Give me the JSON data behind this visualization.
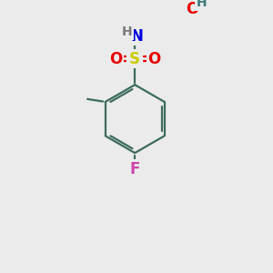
{
  "background_color": "#ebebeb",
  "bond_color": "#3d6b5e",
  "bond_width": 1.6,
  "atom_colors": {
    "O": "#e60000",
    "N": "#0000e0",
    "S": "#cccc00",
    "F": "#cc44aa",
    "H_O": "#3d7a7a",
    "H_N": "#7a7a7a",
    "C": "#3d6b5e"
  },
  "font_size_atoms": 11,
  "figsize": [
    3.0,
    3.0
  ],
  "dpi": 100
}
